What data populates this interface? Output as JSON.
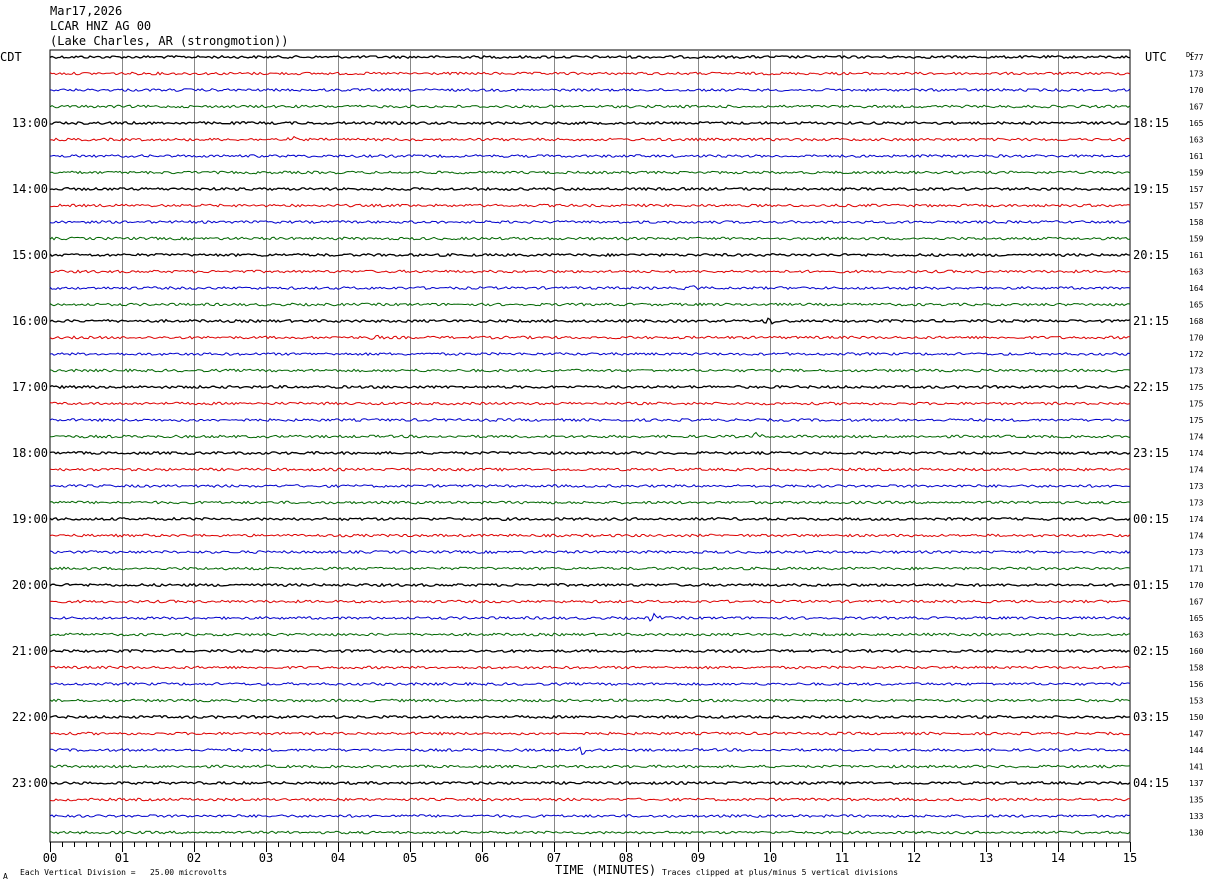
{
  "header": {
    "date": "Mar17,2026",
    "station": "LCAR HNZ AG 00",
    "location": "(Lake Charles, AR (strongmotion))"
  },
  "left_tz_label": "CDT",
  "right_tz_label": "UTC",
  "dc_label": "DC",
  "footer": {
    "scale_note": "Each Vertical Division =   25.00 microvolts",
    "clip_note": "Traces clipped at plus/minus 5 vertical divisions",
    "symbol": "A"
  },
  "chart_data": {
    "type": "line",
    "title": "",
    "xlabel": "TIME (MINUTES)",
    "ylabel": "",
    "xlim": [
      0,
      15
    ],
    "x_ticks": [
      "00",
      "01",
      "02",
      "03",
      "04",
      "05",
      "06",
      "07",
      "08",
      "09",
      "10",
      "11",
      "12",
      "13",
      "14",
      "15"
    ],
    "hour_labels_left": [
      "13:00",
      "14:00",
      "15:00",
      "16:00",
      "17:00",
      "18:00",
      "19:00",
      "20:00",
      "21:00",
      "22:00",
      "23:00"
    ],
    "hour_labels_right": [
      "18:15",
      "19:15",
      "20:15",
      "21:15",
      "22:15",
      "23:15",
      "00:15",
      "01:15",
      "02:15",
      "03:15",
      "04:15"
    ],
    "trace_colors": [
      "#000000",
      "#dd0000",
      "#0000cc",
      "#006600"
    ],
    "dc_offsets": [
      177,
      173,
      170,
      167,
      165,
      163,
      161,
      159,
      157,
      157,
      158,
      159,
      161,
      163,
      164,
      165,
      168,
      170,
      172,
      173,
      175,
      175,
      175,
      174,
      174,
      174,
      173,
      173,
      174,
      174,
      173,
      171,
      170,
      167,
      165,
      163,
      160,
      158,
      156,
      153,
      150,
      147,
      144,
      141,
      137,
      135,
      133,
      130
    ],
    "events": [
      {
        "trace": 5,
        "minute": 3.4,
        "amp": 3
      },
      {
        "trace": 14,
        "minute": 8.9,
        "amp": 3
      },
      {
        "trace": 16,
        "minute": 10.0,
        "amp": 4
      },
      {
        "trace": 17,
        "minute": 4.5,
        "amp": 3
      },
      {
        "trace": 23,
        "minute": 9.8,
        "amp": 4
      },
      {
        "trace": 34,
        "minute": 8.4,
        "amp": 6
      },
      {
        "trace": 42,
        "minute": 7.4,
        "amp": 5
      }
    ]
  }
}
